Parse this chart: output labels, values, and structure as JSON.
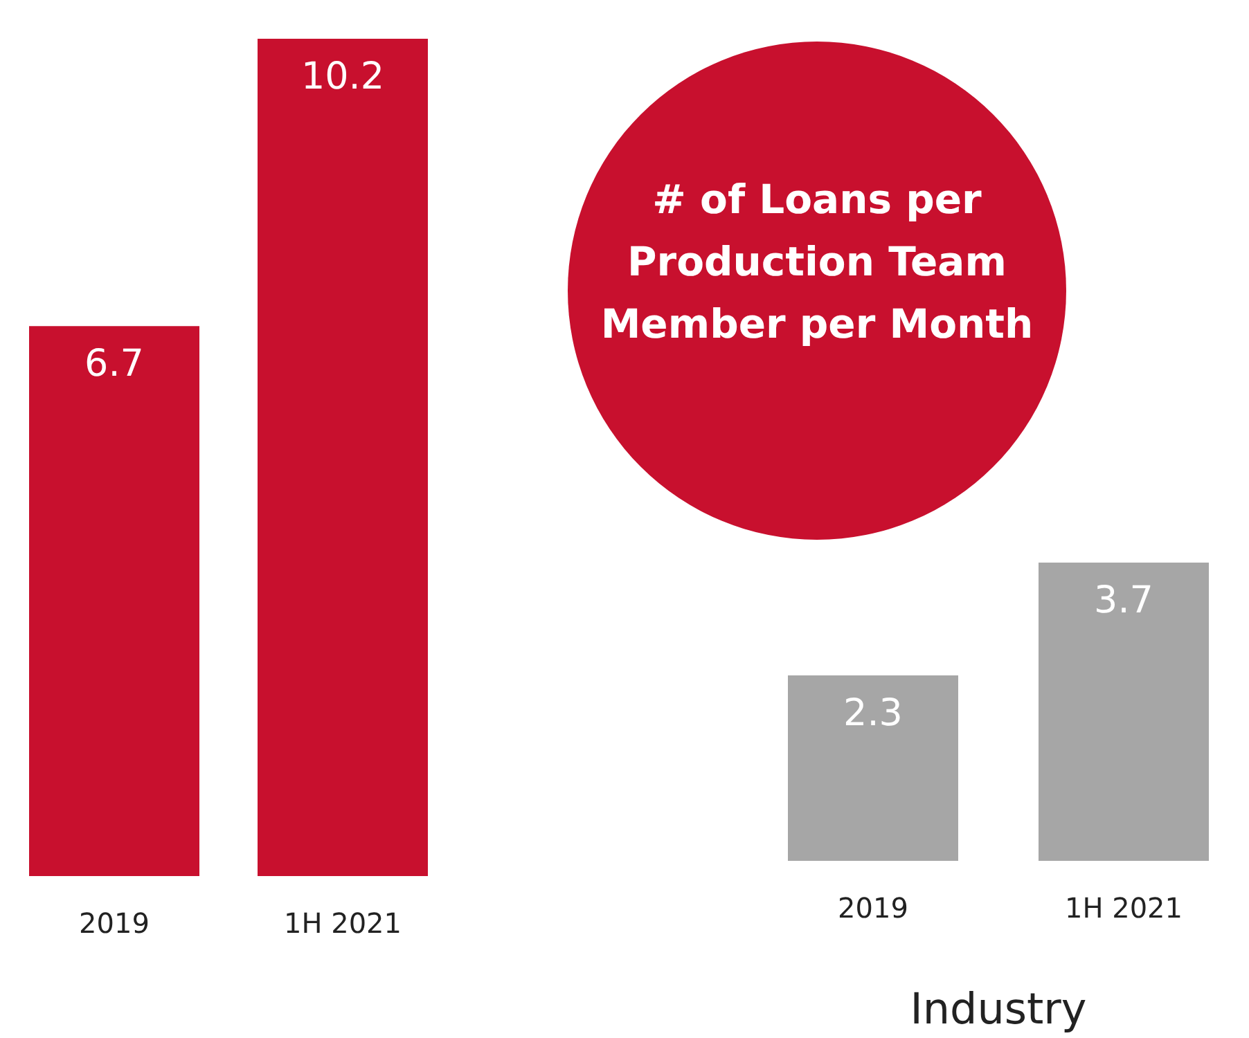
{
  "chart_data": [
    {
      "type": "bar",
      "categories": [
        "2019",
        "1H 2021"
      ],
      "values": [
        6.7,
        10.2
      ],
      "color": "#c8102e",
      "data_labels": true
    },
    {
      "type": "bar",
      "title": "# of Loans per Production Team Member per Month",
      "xlabel": "Industry",
      "categories": [
        "2019",
        "1H 2021"
      ],
      "values": [
        2.3,
        3.7
      ],
      "color": "#a6a6a6",
      "data_labels": true
    }
  ]
}
